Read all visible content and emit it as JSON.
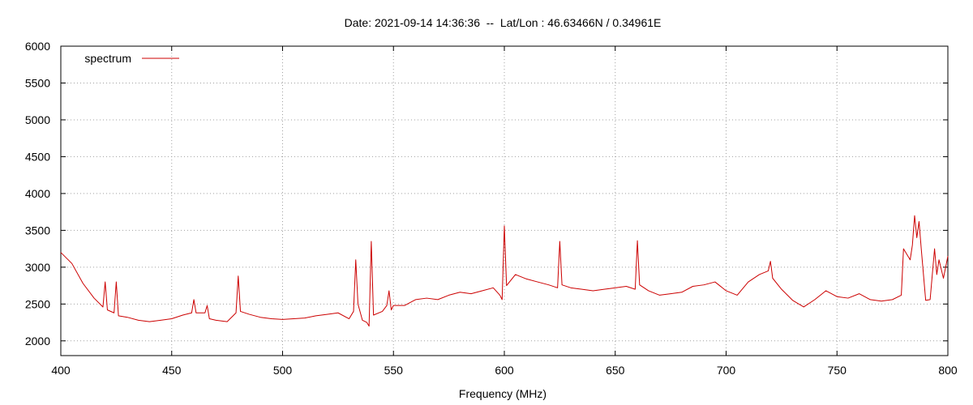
{
  "chart_data": {
    "type": "line",
    "title": "Date: 2021-09-14 14:36:36  --  Lat/Lon : 46.63466N / 0.34961E",
    "xlabel": "Frequency (MHz)",
    "ylabel": "",
    "xlim": [
      400,
      800
    ],
    "ylim": [
      1800,
      6000
    ],
    "xticks": [
      400,
      450,
      500,
      550,
      600,
      650,
      700,
      750,
      800
    ],
    "yticks": [
      2000,
      2500,
      3000,
      3500,
      4000,
      4500,
      5000,
      5500,
      6000
    ],
    "grid": true,
    "legend_position": "top-left",
    "series": [
      {
        "name": "spectrum",
        "color": "#cc0000",
        "points": [
          [
            400,
            3200
          ],
          [
            405,
            3050
          ],
          [
            410,
            2780
          ],
          [
            415,
            2580
          ],
          [
            419,
            2460
          ],
          [
            420,
            2800
          ],
          [
            421,
            2420
          ],
          [
            424,
            2380
          ],
          [
            425,
            2800
          ],
          [
            426,
            2340
          ],
          [
            430,
            2320
          ],
          [
            435,
            2280
          ],
          [
            440,
            2260
          ],
          [
            445,
            2280
          ],
          [
            450,
            2300
          ],
          [
            455,
            2350
          ],
          [
            459,
            2380
          ],
          [
            460,
            2560
          ],
          [
            461,
            2380
          ],
          [
            465,
            2380
          ],
          [
            466,
            2480
          ],
          [
            467,
            2300
          ],
          [
            470,
            2280
          ],
          [
            475,
            2260
          ],
          [
            479,
            2380
          ],
          [
            480,
            2880
          ],
          [
            481,
            2400
          ],
          [
            485,
            2360
          ],
          [
            490,
            2320
          ],
          [
            495,
            2300
          ],
          [
            500,
            2290
          ],
          [
            505,
            2300
          ],
          [
            510,
            2310
          ],
          [
            515,
            2340
          ],
          [
            520,
            2360
          ],
          [
            525,
            2380
          ],
          [
            530,
            2300
          ],
          [
            532,
            2400
          ],
          [
            533,
            3100
          ],
          [
            534,
            2500
          ],
          [
            536,
            2280
          ],
          [
            538,
            2250
          ],
          [
            539,
            2200
          ],
          [
            540,
            3350
          ],
          [
            541,
            2350
          ],
          [
            545,
            2400
          ],
          [
            547,
            2480
          ],
          [
            548,
            2680
          ],
          [
            549,
            2420
          ],
          [
            550,
            2480
          ],
          [
            555,
            2480
          ],
          [
            560,
            2560
          ],
          [
            565,
            2580
          ],
          [
            570,
            2560
          ],
          [
            575,
            2620
          ],
          [
            580,
            2660
          ],
          [
            585,
            2640
          ],
          [
            590,
            2680
          ],
          [
            595,
            2720
          ],
          [
            598,
            2620
          ],
          [
            599,
            2560
          ],
          [
            600,
            3560
          ],
          [
            601,
            2750
          ],
          [
            605,
            2900
          ],
          [
            610,
            2840
          ],
          [
            615,
            2800
          ],
          [
            620,
            2760
          ],
          [
            624,
            2720
          ],
          [
            625,
            3350
          ],
          [
            626,
            2760
          ],
          [
            630,
            2720
          ],
          [
            635,
            2700
          ],
          [
            640,
            2680
          ],
          [
            645,
            2700
          ],
          [
            650,
            2720
          ],
          [
            655,
            2740
          ],
          [
            659,
            2700
          ],
          [
            660,
            3360
          ],
          [
            661,
            2760
          ],
          [
            665,
            2680
          ],
          [
            670,
            2620
          ],
          [
            675,
            2640
          ],
          [
            680,
            2660
          ],
          [
            685,
            2740
          ],
          [
            690,
            2760
          ],
          [
            695,
            2800
          ],
          [
            700,
            2680
          ],
          [
            705,
            2620
          ],
          [
            710,
            2800
          ],
          [
            715,
            2900
          ],
          [
            719,
            2950
          ],
          [
            720,
            3080
          ],
          [
            721,
            2850
          ],
          [
            725,
            2700
          ],
          [
            730,
            2550
          ],
          [
            735,
            2460
          ],
          [
            740,
            2560
          ],
          [
            745,
            2680
          ],
          [
            750,
            2600
          ],
          [
            755,
            2580
          ],
          [
            760,
            2640
          ],
          [
            765,
            2560
          ],
          [
            770,
            2540
          ],
          [
            775,
            2560
          ],
          [
            779,
            2620
          ],
          [
            780,
            3250
          ],
          [
            782,
            3150
          ],
          [
            783,
            3100
          ],
          [
            784,
            3300
          ],
          [
            785,
            3700
          ],
          [
            786,
            3400
          ],
          [
            787,
            3620
          ],
          [
            788,
            3250
          ],
          [
            789,
            2900
          ],
          [
            790,
            2550
          ],
          [
            792,
            2560
          ],
          [
            794,
            3250
          ],
          [
            795,
            2900
          ],
          [
            796,
            3100
          ],
          [
            798,
            2850
          ],
          [
            800,
            3150
          ]
        ]
      }
    ]
  }
}
